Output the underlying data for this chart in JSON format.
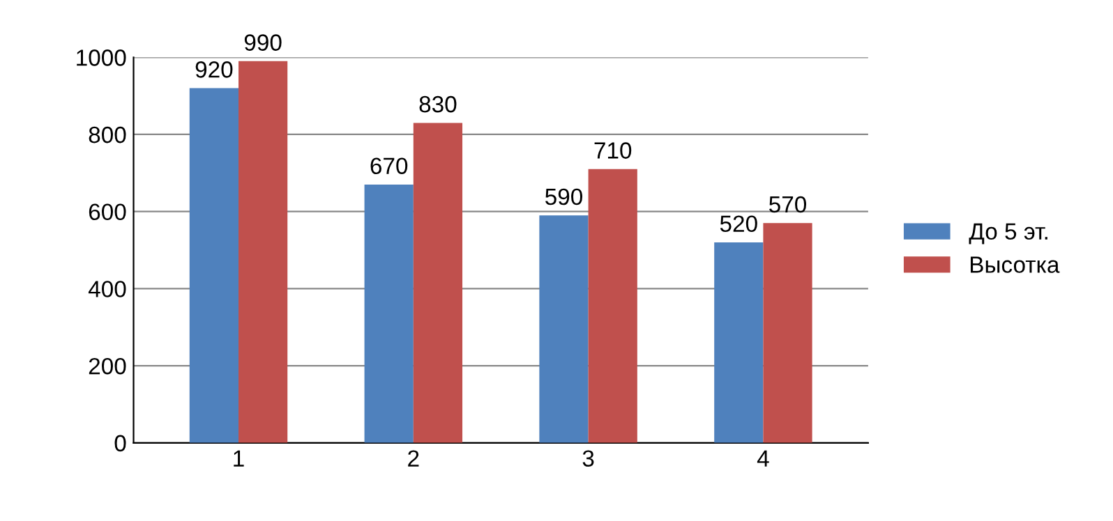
{
  "chart_data": {
    "type": "bar",
    "categories": [
      "1",
      "2",
      "3",
      "4"
    ],
    "series": [
      {
        "name": "До 5 эт.",
        "color": "#4f81bd",
        "values": [
          920,
          670,
          590,
          520
        ]
      },
      {
        "name": "Высотка",
        "color": "#c0504d",
        "values": [
          990,
          830,
          710,
          570
        ]
      }
    ],
    "ylim": [
      0,
      1000
    ],
    "yticks": [
      0,
      200,
      400,
      600,
      800,
      1000
    ],
    "grid": "y",
    "legend": "right",
    "data_labels": true
  }
}
